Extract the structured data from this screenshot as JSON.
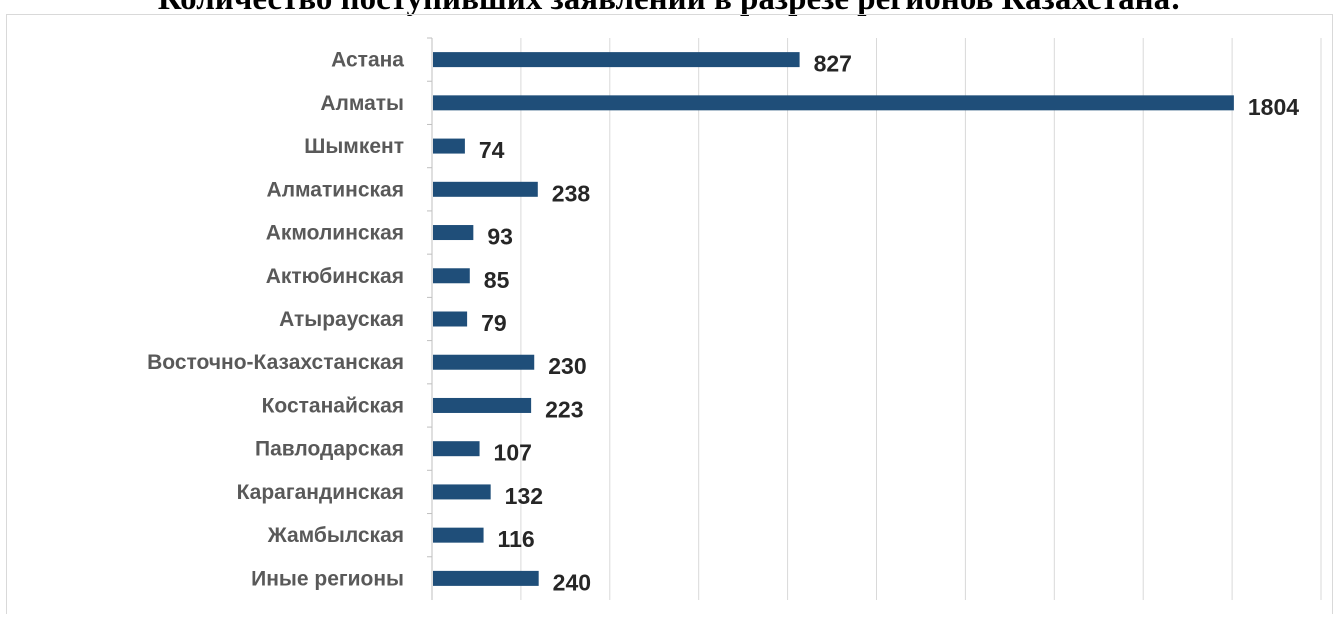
{
  "chart_data": {
    "type": "bar",
    "orientation": "horizontal",
    "title": "Количество поступивших заявлений в разрезе регионов Казахстана:",
    "categories": [
      "Астана",
      "Алматы",
      "Шымкент",
      "Алматинская",
      "Акмолинская",
      "Актюбинская",
      "Атырауская",
      "Восточно-Казахстанская",
      "Костанайская",
      "Павлодарская",
      "Карагандинская",
      "Жамбылская",
      "Иные регионы"
    ],
    "values": [
      827,
      1804,
      74,
      238,
      93,
      85,
      79,
      230,
      223,
      107,
      132,
      116,
      240
    ],
    "xlim": [
      0,
      2000
    ],
    "grid": "vertical",
    "data_labels": true,
    "bar_color": "#1f4e79"
  }
}
